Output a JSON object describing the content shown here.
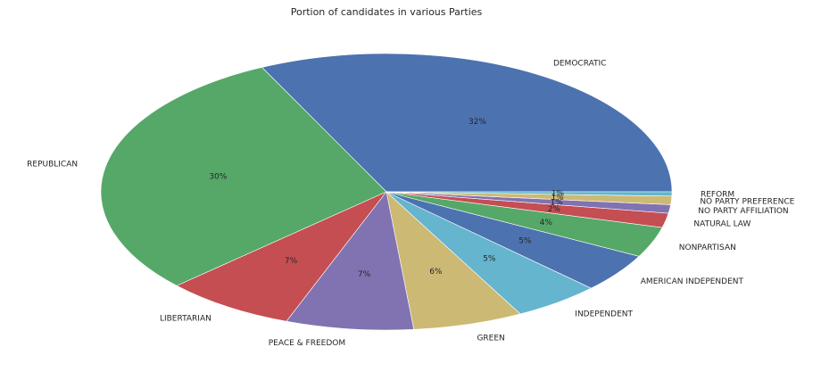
{
  "chart_data": {
    "type": "pie",
    "title": "Portion of candidates in various Parties",
    "legend": "none",
    "slices": [
      {
        "label": "DEMOCRATIC",
        "value": 32.5,
        "pct_label": "32%",
        "color": "#4C72B0"
      },
      {
        "label": "REPUBLICAN",
        "value": 30.0,
        "pct_label": "30%",
        "color": "#55A868"
      },
      {
        "label": "LIBERTARIAN",
        "value": 7.5,
        "pct_label": "7%",
        "color": "#C44E52"
      },
      {
        "label": "PEACE & FREEDOM",
        "value": 7.3,
        "pct_label": "7%",
        "color": "#8172B2"
      },
      {
        "label": "GREEN",
        "value": 6.3,
        "pct_label": "6%",
        "color": "#CCB974"
      },
      {
        "label": "INDEPENDENT",
        "value": 5.0,
        "pct_label": "5%",
        "color": "#64B5CD"
      },
      {
        "label": "AMERICAN INDEPENDENT",
        "value": 4.6,
        "pct_label": "5%",
        "color": "#4C72B0"
      },
      {
        "label": "NONPARTISAN",
        "value": 3.6,
        "pct_label": "4%",
        "color": "#55A868"
      },
      {
        "label": "NATURAL LAW",
        "value": 1.7,
        "pct_label": "2%",
        "color": "#C44E52"
      },
      {
        "label": "NO PARTY AFFILIATION",
        "value": 1.0,
        "pct_label": "1%",
        "color": "#8172B2"
      },
      {
        "label": "NO PARTY PREFERENCE",
        "value": 1.0,
        "pct_label": "1%",
        "color": "#CCB974"
      },
      {
        "label": "REFORM",
        "value": 0.5,
        "pct_label": "1%",
        "color": "#64B5CD"
      }
    ]
  }
}
